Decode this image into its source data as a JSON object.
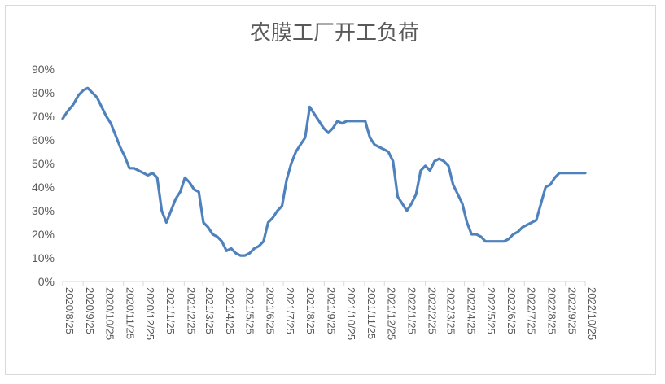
{
  "chart_data": {
    "type": "line",
    "title": "农膜工厂开工负荷",
    "xlabel": "",
    "ylabel": "",
    "ylim": [
      0,
      0.9
    ],
    "y_tick_labels": [
      "0%",
      "10%",
      "20%",
      "30%",
      "40%",
      "50%",
      "60%",
      "70%",
      "80%",
      "90%"
    ],
    "categories": [
      "2020/8/25",
      "2020/9/25",
      "2020/10/25",
      "2020/11/25",
      "2020/12/25",
      "2021/1/25",
      "2021/2/25",
      "2021/3/25",
      "2021/4/25",
      "2021/5/25",
      "2021/6/25",
      "2021/7/25",
      "2021/8/25",
      "2021/9/25",
      "2021/10/25",
      "2021/11/25",
      "2021/12/25",
      "2022/1/25",
      "2022/2/25",
      "2022/3/25",
      "2022/4/25",
      "2022/5/25",
      "2022/6/25",
      "2022/7/25",
      "2022/8/25",
      "2022/9/25",
      "2022/10/25"
    ],
    "grid": false,
    "legend": "none",
    "series": [
      {
        "color": "#4f81bd",
        "x": [
          "2020/8/25",
          "2020/9/1",
          "2020/9/10",
          "2020/9/18",
          "2020/9/25",
          "2020/10/2",
          "2020/10/9",
          "2020/10/16",
          "2020/10/23",
          "2020/10/30",
          "2020/11/6",
          "2020/11/13",
          "2020/11/20",
          "2020/11/27",
          "2020/12/4",
          "2020/12/11",
          "2020/12/18",
          "2020/12/25",
          "2021/1/1",
          "2021/1/8",
          "2021/1/15",
          "2021/1/22",
          "2021/1/29",
          "2021/2/5",
          "2021/2/12",
          "2021/2/19",
          "2021/2/26",
          "2021/3/5",
          "2021/3/12",
          "2021/3/19",
          "2021/3/26",
          "2021/4/2",
          "2021/4/9",
          "2021/4/16",
          "2021/4/23",
          "2021/4/30",
          "2021/5/7",
          "2021/5/14",
          "2021/5/21",
          "2021/5/28",
          "2021/6/4",
          "2021/6/11",
          "2021/6/18",
          "2021/6/25",
          "2021/7/2",
          "2021/7/9",
          "2021/7/16",
          "2021/7/23",
          "2021/7/30",
          "2021/8/6",
          "2021/8/13",
          "2021/8/20",
          "2021/8/27",
          "2021/9/3",
          "2021/9/10",
          "2021/9/17",
          "2021/9/24",
          "2021/10/1",
          "2021/10/8",
          "2021/10/15",
          "2021/10/22",
          "2021/10/29",
          "2021/11/5",
          "2021/11/12",
          "2021/11/19",
          "2021/11/26",
          "2021/12/3",
          "2021/12/10",
          "2021/12/17",
          "2021/12/24",
          "2021/12/31",
          "2022/1/7",
          "2022/1/14",
          "2022/1/21",
          "2022/1/28",
          "2022/2/4",
          "2022/2/11",
          "2022/2/18",
          "2022/2/25",
          "2022/3/4",
          "2022/3/11",
          "2022/3/18",
          "2022/3/25",
          "2022/4/1",
          "2022/4/8",
          "2022/4/15",
          "2022/4/22",
          "2022/4/29",
          "2022/5/6",
          "2022/5/13",
          "2022/5/20",
          "2022/5/27",
          "2022/6/3",
          "2022/6/10",
          "2022/6/17",
          "2022/6/24",
          "2022/7/1",
          "2022/7/8",
          "2022/7/15",
          "2022/7/22",
          "2022/7/29",
          "2022/8/5",
          "2022/8/12",
          "2022/8/19",
          "2022/8/26",
          "2022/9/2",
          "2022/9/9",
          "2022/9/16",
          "2022/9/23",
          "2022/9/30",
          "2022/10/7",
          "2022/10/14",
          "2022/10/21",
          "2022/10/25"
        ],
        "values": [
          0.69,
          0.72,
          0.75,
          0.79,
          0.81,
          0.82,
          0.8,
          0.78,
          0.74,
          0.7,
          0.67,
          0.62,
          0.57,
          0.53,
          0.48,
          0.48,
          0.47,
          0.46,
          0.45,
          0.46,
          0.44,
          0.3,
          0.25,
          0.3,
          0.35,
          0.38,
          0.44,
          0.42,
          0.39,
          0.38,
          0.25,
          0.23,
          0.2,
          0.19,
          0.17,
          0.13,
          0.14,
          0.12,
          0.11,
          0.11,
          0.12,
          0.14,
          0.15,
          0.17,
          0.25,
          0.27,
          0.3,
          0.32,
          0.43,
          0.5,
          0.55,
          0.58,
          0.61,
          0.74,
          0.71,
          0.68,
          0.65,
          0.63,
          0.65,
          0.68,
          0.67,
          0.68,
          0.68,
          0.68,
          0.68,
          0.68,
          0.61,
          0.58,
          0.57,
          0.56,
          0.55,
          0.51,
          0.36,
          0.33,
          0.3,
          0.33,
          0.37,
          0.47,
          0.49,
          0.47,
          0.51,
          0.52,
          0.51,
          0.49,
          0.41,
          0.37,
          0.33,
          0.25,
          0.2,
          0.2,
          0.19,
          0.17,
          0.17,
          0.17,
          0.17,
          0.17,
          0.18,
          0.2,
          0.21,
          0.23,
          0.24,
          0.25,
          0.26,
          0.33,
          0.4,
          0.41,
          0.44,
          0.46,
          0.46,
          0.46,
          0.46,
          0.46,
          0.46,
          0.46
        ]
      }
    ]
  }
}
